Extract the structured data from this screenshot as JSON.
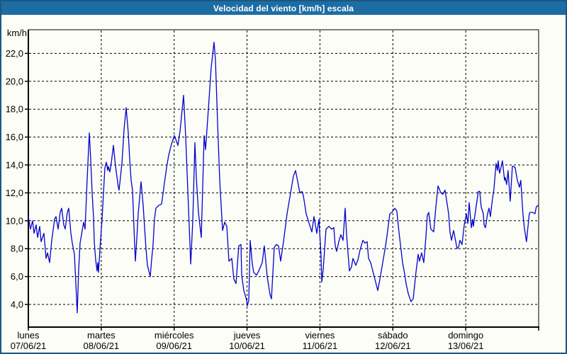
{
  "window": {
    "title": "Velocidad del viento [km/h] escala"
  },
  "colors": {
    "titlebar_bg": "#1d6da5",
    "window_border": "#1d567e",
    "background": "#fcfdf6",
    "grid": "#000000",
    "axis": "#000000",
    "line": "#0202cf",
    "title_text": "#ffffff",
    "label_text": "#000000"
  },
  "chart_data": {
    "type": "line",
    "title": "Velocidad del viento [km/h] escala",
    "ylabel": "km/h",
    "unit_label": "km/h",
    "ylim": [
      2.4,
      23.9
    ],
    "xlim_days": [
      0,
      7
    ],
    "grid": true,
    "legend": "none",
    "line_color": "#0202cf",
    "y_ticks": [
      {
        "value": 22,
        "label": "22,0"
      },
      {
        "value": 20,
        "label": "20,0"
      },
      {
        "value": 18,
        "label": "18,0"
      },
      {
        "value": 16,
        "label": "16,0"
      },
      {
        "value": 14,
        "label": "14,0"
      },
      {
        "value": 12,
        "label": "12,0"
      },
      {
        "value": 10,
        "label": "10,0"
      },
      {
        "value": 8,
        "label": "8,0"
      },
      {
        "value": 6,
        "label": "6,0"
      },
      {
        "value": 4,
        "label": "4,0"
      }
    ],
    "x_days": [
      {
        "name": "lunes",
        "date": "07/06/21"
      },
      {
        "name": "martes",
        "date": "08/06/21"
      },
      {
        "name": "miércoles",
        "date": "09/06/21"
      },
      {
        "name": "jueves",
        "date": "10/06/21"
      },
      {
        "name": "viernes",
        "date": "11/06/21"
      },
      {
        "name": "sábado",
        "date": "12/06/21"
      },
      {
        "name": "domingo",
        "date": "13/06/21"
      }
    ],
    "series": [
      {
        "name": "Velocidad del viento [km/h]",
        "points": [
          [
            0,
            10.3
          ],
          [
            0.029,
            9.4
          ],
          [
            0.058,
            10.0
          ],
          [
            0.078,
            9.1
          ],
          [
            0.107,
            9.7
          ],
          [
            0.126,
            8.8
          ],
          [
            0.156,
            9.6
          ],
          [
            0.175,
            8.5
          ],
          [
            0.214,
            9.1
          ],
          [
            0.243,
            7.3
          ],
          [
            0.263,
            7.7
          ],
          [
            0.292,
            7.0
          ],
          [
            0.321,
            8.6
          ],
          [
            0.36,
            10.1
          ],
          [
            0.379,
            10.3
          ],
          [
            0.408,
            9.4
          ],
          [
            0.437,
            10.6
          ],
          [
            0.457,
            10.9
          ],
          [
            0.486,
            9.7
          ],
          [
            0.506,
            9.4
          ],
          [
            0.535,
            10.6
          ],
          [
            0.554,
            10.9
          ],
          [
            0.583,
            9.1
          ],
          [
            0.603,
            8.4
          ],
          [
            0.632,
            7.6
          ],
          [
            0.651,
            5.5
          ],
          [
            0.671,
            3.4
          ],
          [
            0.69,
            6.5
          ],
          [
            0.71,
            8.4
          ],
          [
            0.739,
            9.3
          ],
          [
            0.758,
            9.9
          ],
          [
            0.778,
            9.4
          ],
          [
            0.807,
            13.0
          ],
          [
            0.836,
            16.3
          ],
          [
            0.856,
            14.4
          ],
          [
            0.875,
            12.0
          ],
          [
            0.894,
            10.2
          ],
          [
            0.904,
            8.5
          ],
          [
            0.924,
            7.2
          ],
          [
            0.943,
            6.4
          ],
          [
            0.953,
            7.0
          ],
          [
            0.962,
            6.3
          ],
          [
            0.992,
            8.7
          ],
          [
            1.011,
            10.1
          ],
          [
            1.031,
            12.0
          ],
          [
            1.05,
            13.8
          ],
          [
            1.069,
            14.2
          ],
          [
            1.089,
            13.6
          ],
          [
            1.099,
            13.9
          ],
          [
            1.118,
            13.5
          ],
          [
            1.137,
            14.1
          ],
          [
            1.167,
            15.4
          ],
          [
            1.196,
            13.9
          ],
          [
            1.235,
            12.4
          ],
          [
            1.244,
            12.2
          ],
          [
            1.283,
            14.1
          ],
          [
            1.313,
            16.6
          ],
          [
            1.342,
            18.1
          ],
          [
            1.371,
            16.3
          ],
          [
            1.39,
            14.4
          ],
          [
            1.41,
            12.9
          ],
          [
            1.429,
            12.2
          ],
          [
            1.449,
            9.5
          ],
          [
            1.468,
            7.1
          ],
          [
            1.488,
            8.8
          ],
          [
            1.507,
            10.5
          ],
          [
            1.527,
            11.7
          ],
          [
            1.546,
            12.8
          ],
          [
            1.575,
            11.1
          ],
          [
            1.594,
            9.5
          ],
          [
            1.614,
            8.0
          ],
          [
            1.633,
            6.8
          ],
          [
            1.672,
            6.0
          ],
          [
            1.691,
            7.2
          ],
          [
            1.711,
            8.3
          ],
          [
            1.73,
            10.1
          ],
          [
            1.75,
            10.9
          ],
          [
            1.789,
            11.1
          ],
          [
            1.828,
            11.2
          ],
          [
            1.867,
            12.7
          ],
          [
            1.896,
            13.8
          ],
          [
            1.925,
            14.7
          ],
          [
            1.964,
            15.5
          ],
          [
            2.003,
            16.1
          ],
          [
            2.032,
            15.7
          ],
          [
            2.051,
            15.4
          ],
          [
            2.081,
            16.4
          ],
          [
            2.129,
            19.0
          ],
          [
            2.158,
            16.0
          ],
          [
            2.188,
            12.0
          ],
          [
            2.227,
            6.9
          ],
          [
            2.256,
            10.0
          ],
          [
            2.285,
            15.6
          ],
          [
            2.304,
            13.1
          ],
          [
            2.333,
            10.6
          ],
          [
            2.363,
            9.2
          ],
          [
            2.372,
            8.8
          ],
          [
            2.411,
            16.1
          ],
          [
            2.431,
            15.1
          ],
          [
            2.469,
            18.0
          ],
          [
            2.508,
            21.0
          ],
          [
            2.547,
            22.8
          ],
          [
            2.567,
            21.5
          ],
          [
            2.596,
            17.0
          ],
          [
            2.625,
            12.9
          ],
          [
            2.664,
            9.3
          ],
          [
            2.693,
            9.9
          ],
          [
            2.722,
            9.6
          ],
          [
            2.751,
            7.1
          ],
          [
            2.79,
            7.3
          ],
          [
            2.819,
            5.8
          ],
          [
            2.849,
            5.5
          ],
          [
            2.887,
            8.2
          ],
          [
            2.917,
            8.3
          ],
          [
            2.926,
            6.1
          ],
          [
            2.956,
            5.0
          ],
          [
            2.994,
            4.3
          ],
          [
            3.004,
            3.9
          ],
          [
            3.024,
            4.3
          ],
          [
            3.043,
            8.6
          ],
          [
            3.072,
            6.9
          ],
          [
            3.092,
            6.3
          ],
          [
            3.131,
            6.1
          ],
          [
            3.16,
            6.4
          ],
          [
            3.208,
            7.0
          ],
          [
            3.237,
            8.2
          ],
          [
            3.276,
            6.0
          ],
          [
            3.315,
            4.7
          ],
          [
            3.335,
            4.4
          ],
          [
            3.374,
            8.1
          ],
          [
            3.403,
            8.3
          ],
          [
            3.432,
            8.2
          ],
          [
            3.461,
            7.1
          ],
          [
            3.5,
            8.5
          ],
          [
            3.549,
            10.5
          ],
          [
            3.597,
            12.0
          ],
          [
            3.636,
            13.2
          ],
          [
            3.665,
            13.6
          ],
          [
            3.695,
            12.8
          ],
          [
            3.724,
            12.0
          ],
          [
            3.753,
            12.1
          ],
          [
            3.772,
            11.8
          ],
          [
            3.811,
            10.5
          ],
          [
            3.84,
            10.0
          ],
          [
            3.889,
            9.2
          ],
          [
            3.918,
            10.3
          ],
          [
            3.957,
            9.1
          ],
          [
            3.986,
            10.1
          ],
          [
            4.015,
            7.5
          ],
          [
            4.025,
            5.6
          ],
          [
            4.044,
            6.5
          ],
          [
            4.083,
            9.4
          ],
          [
            4.122,
            9.6
          ],
          [
            4.161,
            9.4
          ],
          [
            4.19,
            9.5
          ],
          [
            4.21,
            8.2
          ],
          [
            4.229,
            7.8
          ],
          [
            4.258,
            8.5
          ],
          [
            4.287,
            9.0
          ],
          [
            4.317,
            8.6
          ],
          [
            4.346,
            10.9
          ],
          [
            4.365,
            9.0
          ],
          [
            4.404,
            6.4
          ],
          [
            4.433,
            6.7
          ],
          [
            4.453,
            7.3
          ],
          [
            4.492,
            6.8
          ],
          [
            4.521,
            7.2
          ],
          [
            4.55,
            7.9
          ],
          [
            4.589,
            8.6
          ],
          [
            4.618,
            8.4
          ],
          [
            4.647,
            8.5
          ],
          [
            4.667,
            7.3
          ],
          [
            4.696,
            7.0
          ],
          [
            4.725,
            6.4
          ],
          [
            4.764,
            5.6
          ],
          [
            4.793,
            5.0
          ],
          [
            4.822,
            5.8
          ],
          [
            4.861,
            7.0
          ],
          [
            4.9,
            8.2
          ],
          [
            4.929,
            9.3
          ],
          [
            4.958,
            10.5
          ],
          [
            4.987,
            10.6
          ],
          [
            5.026,
            10.9
          ],
          [
            5.055,
            10.7
          ],
          [
            5.084,
            9.2
          ],
          [
            5.133,
            7.0
          ],
          [
            5.162,
            6.2
          ],
          [
            5.181,
            5.5
          ],
          [
            5.21,
            4.8
          ],
          [
            5.249,
            4.2
          ],
          [
            5.279,
            4.4
          ],
          [
            5.317,
            6.3
          ],
          [
            5.347,
            7.6
          ],
          [
            5.366,
            7.1
          ],
          [
            5.395,
            7.7
          ],
          [
            5.424,
            7.0
          ],
          [
            5.453,
            8.8
          ],
          [
            5.473,
            10.4
          ],
          [
            5.492,
            10.6
          ],
          [
            5.521,
            9.4
          ],
          [
            5.56,
            9.2
          ],
          [
            5.59,
            11.0
          ],
          [
            5.619,
            12.5
          ],
          [
            5.658,
            12.0
          ],
          [
            5.687,
            11.9
          ],
          [
            5.716,
            12.2
          ],
          [
            5.765,
            10.5
          ],
          [
            5.784,
            9.2
          ],
          [
            5.804,
            8.6
          ],
          [
            5.833,
            9.3
          ],
          [
            5.852,
            8.8
          ],
          [
            5.881,
            8.0
          ],
          [
            5.901,
            8.1
          ],
          [
            5.92,
            8.6
          ],
          [
            5.949,
            8.3
          ],
          [
            5.979,
            9.7
          ],
          [
            6.008,
            10.5
          ],
          [
            6.028,
            9.8
          ],
          [
            6.047,
            11.3
          ],
          [
            6.076,
            9.5
          ],
          [
            6.096,
            10.1
          ],
          [
            6.105,
            9.6
          ],
          [
            6.144,
            11.1
          ],
          [
            6.173,
            12.1
          ],
          [
            6.192,
            12.1
          ],
          [
            6.212,
            11.0
          ],
          [
            6.241,
            10.5
          ],
          [
            6.251,
            9.7
          ],
          [
            6.27,
            9.5
          ],
          [
            6.299,
            10.5
          ],
          [
            6.319,
            10.9
          ],
          [
            6.338,
            10.3
          ],
          [
            6.367,
            11.6
          ],
          [
            6.386,
            12.2
          ],
          [
            6.416,
            14.1
          ],
          [
            6.435,
            13.6
          ],
          [
            6.445,
            14.3
          ],
          [
            6.464,
            13.4
          ],
          [
            6.483,
            13.8
          ],
          [
            6.503,
            14.3
          ],
          [
            6.532,
            12.9
          ],
          [
            6.542,
            13.1
          ],
          [
            6.561,
            12.6
          ],
          [
            6.581,
            13.6
          ],
          [
            6.59,
            12.9
          ],
          [
            6.61,
            11.4
          ],
          [
            6.639,
            13.9
          ],
          [
            6.658,
            13.9
          ],
          [
            6.678,
            13.8
          ],
          [
            6.707,
            12.9
          ],
          [
            6.726,
            12.6
          ],
          [
            6.736,
            12.4
          ],
          [
            6.755,
            12.9
          ],
          [
            6.784,
            10.5
          ],
          [
            6.804,
            9.5
          ],
          [
            6.833,
            8.5
          ],
          [
            6.872,
            10.5
          ],
          [
            6.881,
            10.6
          ],
          [
            6.92,
            10.6
          ],
          [
            6.949,
            10.5
          ],
          [
            6.968,
            11.0
          ],
          [
            6.997,
            11.1
          ]
        ]
      }
    ]
  }
}
